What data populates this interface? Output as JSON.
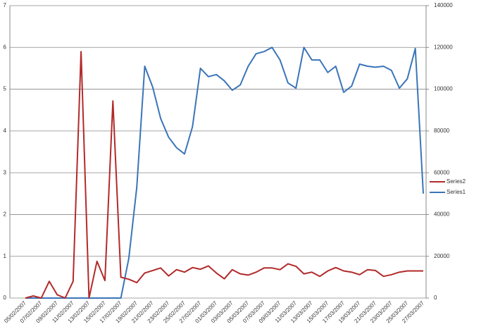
{
  "chart_data": {
    "type": "line",
    "categories": [
      "05/02/2007",
      null,
      "07/02/2007",
      null,
      "09/02/2007",
      null,
      "11/02/2007",
      null,
      "13/02/2007",
      null,
      "15/02/2007",
      null,
      "17/02/2007",
      null,
      "19/02/2007",
      null,
      "21/02/2007",
      null,
      "23/02/2007",
      null,
      "25/02/2007",
      null,
      "27/02/2007",
      null,
      "01/03/2007",
      null,
      "03/03/2007",
      null,
      "05/03/2007",
      null,
      "07/03/2007",
      null,
      "09/03/2007",
      null,
      "11/03/2007",
      null,
      "13/03/2007",
      null,
      "15/03/2007",
      null,
      "17/03/2007",
      null,
      "19/03/2007",
      null,
      "21/03/2007",
      null,
      "23/03/2007",
      null,
      "25/03/2007",
      null,
      "27/03/2007"
    ],
    "series": [
      {
        "name": "Series2",
        "color": "#b22a2a",
        "axis": "y",
        "values": [
          0,
          0.05,
          0,
          0.4,
          0.08,
          0,
          0.4,
          5.9,
          0,
          0.88,
          0.42,
          4.72,
          0.5,
          0.45,
          0.37,
          0.6,
          0.66,
          0.72,
          0.53,
          0.68,
          0.62,
          0.73,
          0.69,
          0.77,
          0.6,
          0.46,
          0.68,
          0.58,
          0.55,
          0.62,
          0.72,
          0.72,
          0.68,
          0.82,
          0.76,
          0.58,
          0.62,
          0.52,
          0.65,
          0.73,
          0.65,
          0.62,
          0.56,
          0.68,
          0.66,
          0.52,
          0.56,
          0.62,
          0.65,
          0.65,
          0.65
        ]
      },
      {
        "name": "Series1",
        "color": "#3a75b8",
        "axis": "y2",
        "values": [
          0,
          0,
          0,
          0,
          0,
          0,
          0,
          0,
          0,
          0,
          0,
          0,
          0,
          19000,
          53000,
          111000,
          101000,
          86000,
          77000,
          72000,
          69000,
          82000,
          110000,
          106000,
          107000,
          104000,
          99500,
          102000,
          111000,
          117000,
          118000,
          120000,
          114000,
          103000,
          100500,
          120000,
          114000,
          114000,
          108000,
          111000,
          98500,
          101500,
          112000,
          111000,
          110500,
          111000,
          109000,
          100500,
          105000,
          119500,
          50000
        ]
      }
    ],
    "ylim": [
      0,
      7
    ],
    "yticks": [
      0,
      1,
      2,
      3,
      4,
      5,
      6,
      7
    ],
    "y2lim": [
      0,
      140000
    ],
    "y2ticks": [
      0,
      20000,
      40000,
      60000,
      80000,
      100000,
      120000,
      140000
    ],
    "grid": true,
    "legend": "right"
  }
}
